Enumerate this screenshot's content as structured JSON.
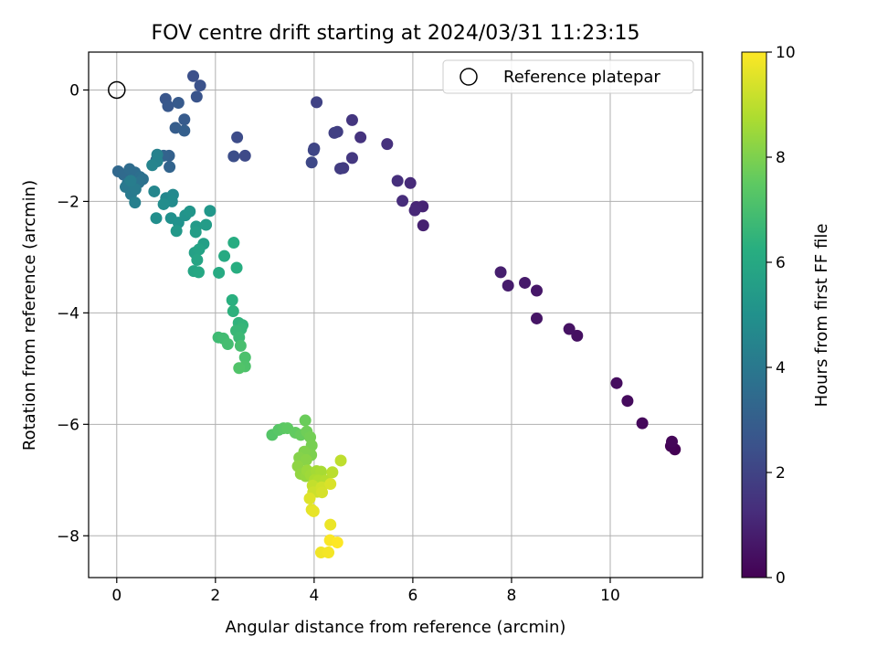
{
  "chart_data": {
    "type": "scatter",
    "title": "FOV centre drift starting at 2024/03/31 11:23:15",
    "xlabel": "Angular distance from reference (arcmin)",
    "ylabel": "Rotation from reference (arcmin)",
    "xlim": [
      -0.57,
      11.87
    ],
    "ylim": [
      -8.75,
      0.68
    ],
    "xticks": [
      0,
      2,
      4,
      6,
      8,
      10
    ],
    "yticks": [
      0,
      -2,
      -4,
      -6,
      -8
    ],
    "grid": true,
    "legend": {
      "placement": "top-right",
      "entries": [
        "Reference platepar"
      ]
    },
    "colorbar": {
      "label": "Hours from first FF file",
      "range": [
        0,
        10
      ],
      "ticks": [
        0,
        2,
        4,
        6,
        8,
        10
      ],
      "colormap": "viridis"
    },
    "reference_point": {
      "x": 0,
      "y": 0
    },
    "series": [
      {
        "points": [
          [
            11.31,
            -6.45
          ],
          [
            11.23,
            -6.39
          ],
          [
            11.25,
            -6.31
          ],
          [
            10.65,
            -5.98
          ],
          [
            10.35,
            -5.58
          ],
          [
            10.13,
            -5.26
          ],
          [
            9.33,
            -4.41
          ],
          [
            9.17,
            -4.29
          ],
          [
            8.51,
            -4.1
          ],
          [
            8.51,
            -3.6
          ],
          [
            8.27,
            -3.46
          ],
          [
            7.93,
            -3.51
          ],
          [
            7.78,
            -3.27
          ],
          [
            6.21,
            -2.43
          ],
          [
            6.2,
            -2.09
          ],
          [
            6.07,
            -2.1
          ],
          [
            6.04,
            -2.16
          ],
          [
            5.95,
            -1.67
          ],
          [
            5.79,
            -1.99
          ],
          [
            5.69,
            -1.63
          ],
          [
            5.48,
            -0.97
          ],
          [
            4.94,
            -0.85
          ],
          [
            4.77,
            -0.54
          ],
          [
            4.77,
            -1.22
          ],
          [
            4.59,
            -1.4
          ],
          [
            4.53,
            -1.41
          ],
          [
            4.47,
            -0.75
          ],
          [
            4.41,
            -0.77
          ],
          [
            4.05,
            -0.22
          ],
          [
            4.0,
            -1.05
          ],
          [
            3.99,
            -1.08
          ],
          [
            3.95,
            -1.3
          ],
          [
            2.6,
            -1.18
          ],
          [
            2.44,
            -0.85
          ],
          [
            2.37,
            -1.19
          ],
          [
            1.55,
            0.25
          ],
          [
            1.69,
            0.08
          ],
          [
            1.62,
            -0.12
          ],
          [
            0.99,
            -0.16
          ],
          [
            1.04,
            -0.29
          ],
          [
            1.25,
            -0.23
          ],
          [
            1.37,
            -0.53
          ],
          [
            1.19,
            -0.68
          ],
          [
            1.37,
            -0.73
          ],
          [
            1.06,
            -1.18
          ],
          [
            0.95,
            -1.18
          ],
          [
            1.07,
            -1.38
          ],
          [
            0.8,
            -1.26
          ],
          [
            0.03,
            -1.46
          ],
          [
            0.14,
            -1.52
          ],
          [
            0.26,
            -1.42
          ],
          [
            0.37,
            -1.48
          ],
          [
            0.47,
            -1.56
          ],
          [
            0.53,
            -1.6
          ],
          [
            0.45,
            -1.66
          ],
          [
            0.34,
            -1.76
          ],
          [
            0.22,
            -1.68
          ],
          [
            0.18,
            -1.74
          ],
          [
            0.29,
            -1.87
          ],
          [
            0.38,
            -1.78
          ],
          [
            0.28,
            -1.63
          ],
          [
            0.37,
            -2.02
          ],
          [
            0.82,
            -1.16
          ],
          [
            0.82,
            -1.28
          ],
          [
            0.72,
            -1.35
          ],
          [
            0.76,
            -1.82
          ],
          [
            1.0,
            -1.94
          ],
          [
            1.14,
            -1.88
          ],
          [
            1.12,
            -2.0
          ],
          [
            0.95,
            -2.05
          ],
          [
            0.8,
            -2.3
          ],
          [
            1.1,
            -2.3
          ],
          [
            1.25,
            -2.38
          ],
          [
            1.39,
            -2.25
          ],
          [
            1.48,
            -2.18
          ],
          [
            1.89,
            -2.17
          ],
          [
            1.21,
            -2.53
          ],
          [
            1.61,
            -2.45
          ],
          [
            1.81,
            -2.42
          ],
          [
            1.6,
            -2.55
          ],
          [
            1.76,
            -2.76
          ],
          [
            1.58,
            -2.92
          ],
          [
            1.67,
            -2.86
          ],
          [
            1.63,
            -3.05
          ],
          [
            1.56,
            -3.25
          ],
          [
            1.66,
            -3.27
          ],
          [
            2.18,
            -2.98
          ],
          [
            2.07,
            -3.28
          ],
          [
            2.37,
            -2.74
          ],
          [
            2.43,
            -3.19
          ],
          [
            2.34,
            -3.77
          ],
          [
            2.36,
            -3.97
          ],
          [
            2.47,
            -4.18
          ],
          [
            2.55,
            -4.22
          ],
          [
            2.52,
            -4.29
          ],
          [
            2.42,
            -4.32
          ],
          [
            2.48,
            -4.44
          ],
          [
            2.06,
            -4.44
          ],
          [
            2.16,
            -4.46
          ],
          [
            2.25,
            -4.56
          ],
          [
            2.51,
            -4.59
          ],
          [
            2.6,
            -4.8
          ],
          [
            2.6,
            -4.96
          ],
          [
            2.48,
            -4.99
          ],
          [
            3.15,
            -6.19
          ],
          [
            3.28,
            -6.1
          ],
          [
            3.38,
            -6.07
          ],
          [
            3.46,
            -6.07
          ],
          [
            3.62,
            -6.15
          ],
          [
            3.73,
            -6.19
          ],
          [
            3.82,
            -5.93
          ],
          [
            3.85,
            -6.13
          ],
          [
            3.92,
            -6.23
          ],
          [
            3.95,
            -6.38
          ],
          [
            3.94,
            -6.55
          ],
          [
            3.8,
            -6.49
          ],
          [
            3.7,
            -6.6
          ],
          [
            3.84,
            -6.64
          ],
          [
            3.67,
            -6.75
          ],
          [
            3.73,
            -6.89
          ],
          [
            3.83,
            -6.93
          ],
          [
            3.86,
            -6.83
          ],
          [
            3.93,
            -6.91
          ],
          [
            4.05,
            -6.84
          ],
          [
            4.14,
            -6.85
          ],
          [
            4.01,
            -7.0
          ],
          [
            4.09,
            -7.01
          ],
          [
            4.23,
            -7.01
          ],
          [
            4.37,
            -6.86
          ],
          [
            4.54,
            -6.65
          ],
          [
            3.97,
            -7.1
          ],
          [
            4.06,
            -7.21
          ],
          [
            3.98,
            -7.22
          ],
          [
            4.15,
            -7.13
          ],
          [
            4.16,
            -7.22
          ],
          [
            4.33,
            -7.07
          ],
          [
            3.91,
            -7.33
          ],
          [
            3.95,
            -7.53
          ],
          [
            3.99,
            -7.56
          ],
          [
            4.33,
            -7.8
          ],
          [
            4.14,
            -8.3
          ],
          [
            4.29,
            -8.3
          ],
          [
            4.32,
            -8.08
          ],
          [
            4.47,
            -8.12
          ]
        ]
      }
    ]
  }
}
